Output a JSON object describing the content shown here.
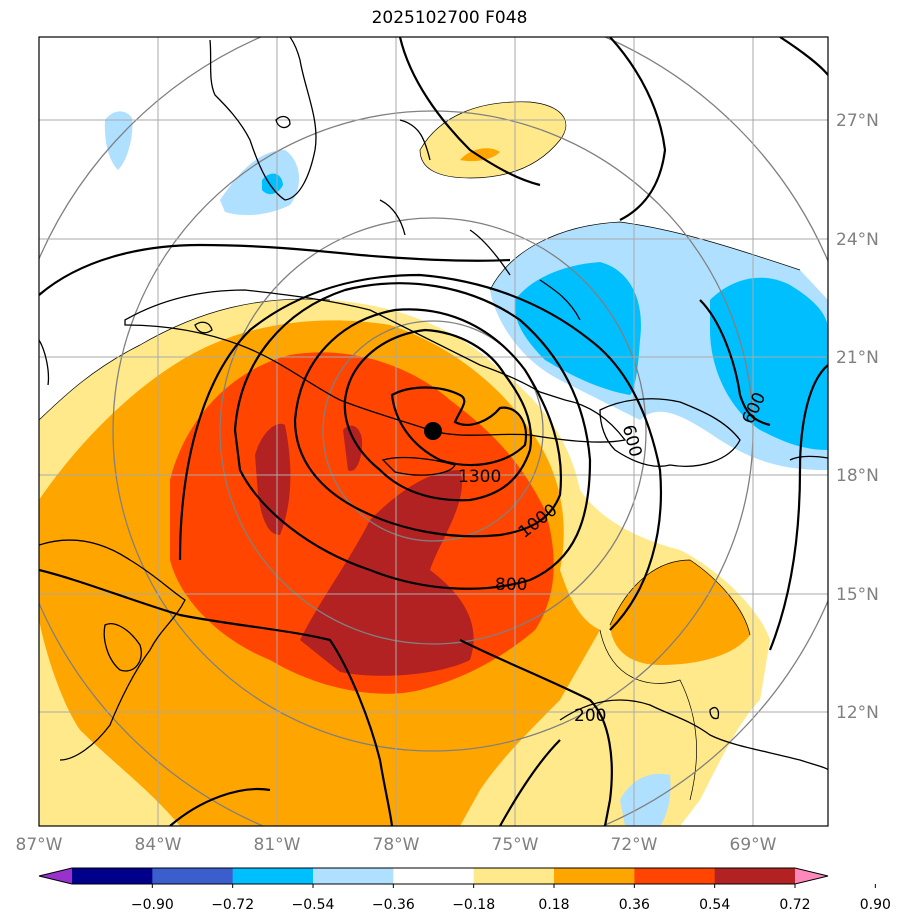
{
  "title": "2025102700 F048",
  "map": {
    "lon_range": [
      -87,
      -66.3
    ],
    "lat_range": [
      9.1,
      28.5
    ],
    "lat_labels": [
      "27°N",
      "24°N",
      "21°N",
      "18°N",
      "15°N",
      "12°N"
    ],
    "lon_labels": [
      "87°W",
      "84°W",
      "81°W",
      "78°W",
      "75°W",
      "72°W",
      "69°W"
    ],
    "storm_center": {
      "lon": -76.0,
      "lat": 19.0
    },
    "contour_labels": [
      "1300",
      "1000",
      "800",
      "600",
      "600",
      "200"
    ],
    "fill_colors": {
      "light_yellow": "#ffe98a",
      "orange": "#ffa500",
      "red_orange": "#ff4500",
      "dark_red": "#b22222",
      "light_blue": "#b0e0ff",
      "deep_sky_blue": "#00bfff"
    }
  },
  "colorbar": {
    "labels": [
      "−0.90",
      "−0.72",
      "−0.54",
      "−0.36",
      "−0.18",
      "0.18",
      "0.36",
      "0.54",
      "0.72",
      "0.90"
    ],
    "colors": [
      "#9932cc",
      "#00008b",
      "#3a5fcd",
      "#00bfff",
      "#b0e0ff",
      "#ffffff",
      "#ffe98a",
      "#ffa500",
      "#ff4500",
      "#b22222",
      "#ff88bb"
    ]
  }
}
